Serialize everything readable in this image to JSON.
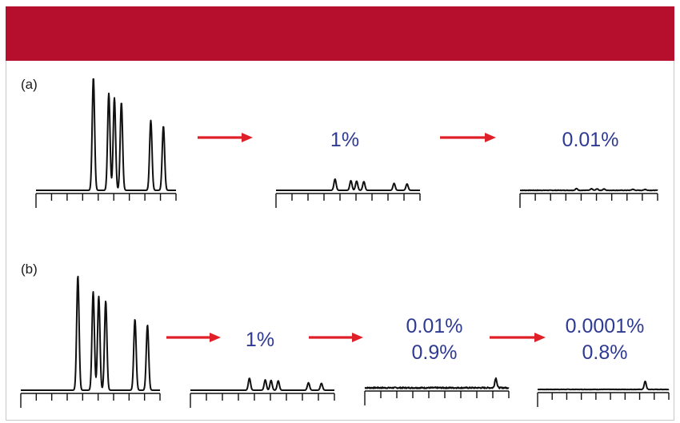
{
  "banner": {
    "color": "#b60f2d",
    "text": ""
  },
  "panels": [
    {
      "label": "(a)",
      "steps": [
        {
          "lines": []
        },
        {
          "lines": [
            "1%"
          ]
        },
        {
          "lines": [
            "0.01%"
          ]
        }
      ]
    },
    {
      "label": "(b)",
      "steps": [
        {
          "lines": []
        },
        {
          "lines": [
            "1%"
          ]
        },
        {
          "lines": [
            "0.01%",
            "0.9%"
          ]
        },
        {
          "lines": [
            "0.0001%",
            "0.8%"
          ]
        }
      ]
    }
  ],
  "colors": {
    "arrow": "#e02028",
    "percent_text": "#2e3a93",
    "trace": "#111111"
  },
  "icons": {
    "arrow": "right-arrow-icon"
  }
}
